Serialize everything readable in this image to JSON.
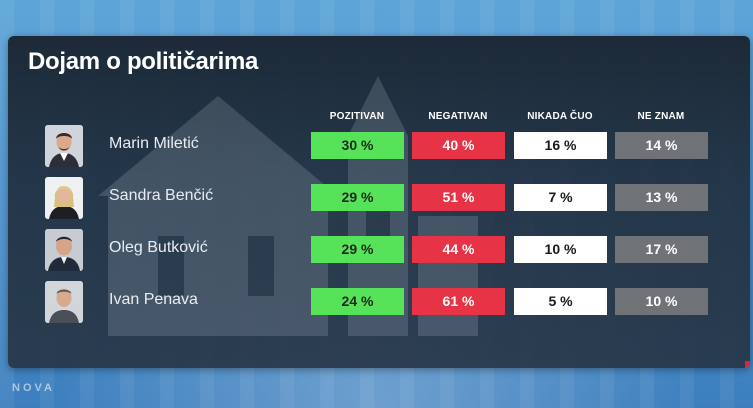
{
  "panel": {
    "title": "Dojam o političarima"
  },
  "columns": [
    {
      "key": "pozitivan",
      "label": "POZITIVAN"
    },
    {
      "key": "negativan",
      "label": "NEGATIVAN"
    },
    {
      "key": "nikada_cuo",
      "label": "NIKADA ČUO"
    },
    {
      "key": "ne_znam",
      "label": "NE ZNAM"
    }
  ],
  "rows": [
    {
      "name": "Marin Miletić",
      "avatar_icon": "person-portrait-icon",
      "pozitivan": "30 %",
      "negativan": "40 %",
      "nikada_cuo": "16 %",
      "ne_znam": "14 %"
    },
    {
      "name": "Sandra Benčić",
      "avatar_icon": "person-portrait-icon",
      "pozitivan": "29 %",
      "negativan": "51 %",
      "nikada_cuo": "7 %",
      "ne_znam": "13 %"
    },
    {
      "name": "Oleg Butković",
      "avatar_icon": "person-portrait-icon",
      "pozitivan": "29 %",
      "negativan": "44 %",
      "nikada_cuo": "10 %",
      "ne_znam": "17 %"
    },
    {
      "name": "Ivan Penava",
      "avatar_icon": "person-portrait-icon",
      "pozitivan": "24 %",
      "negativan": "61 %",
      "nikada_cuo": "5 %",
      "ne_znam": "10 %"
    }
  ],
  "colors": {
    "pozitivan": "#56e35a",
    "negativan": "#e63346",
    "nikada_cuo": "#ffffff",
    "ne_znam": "#6f7277"
  },
  "footer": {
    "logo_text": "NOVA"
  }
}
